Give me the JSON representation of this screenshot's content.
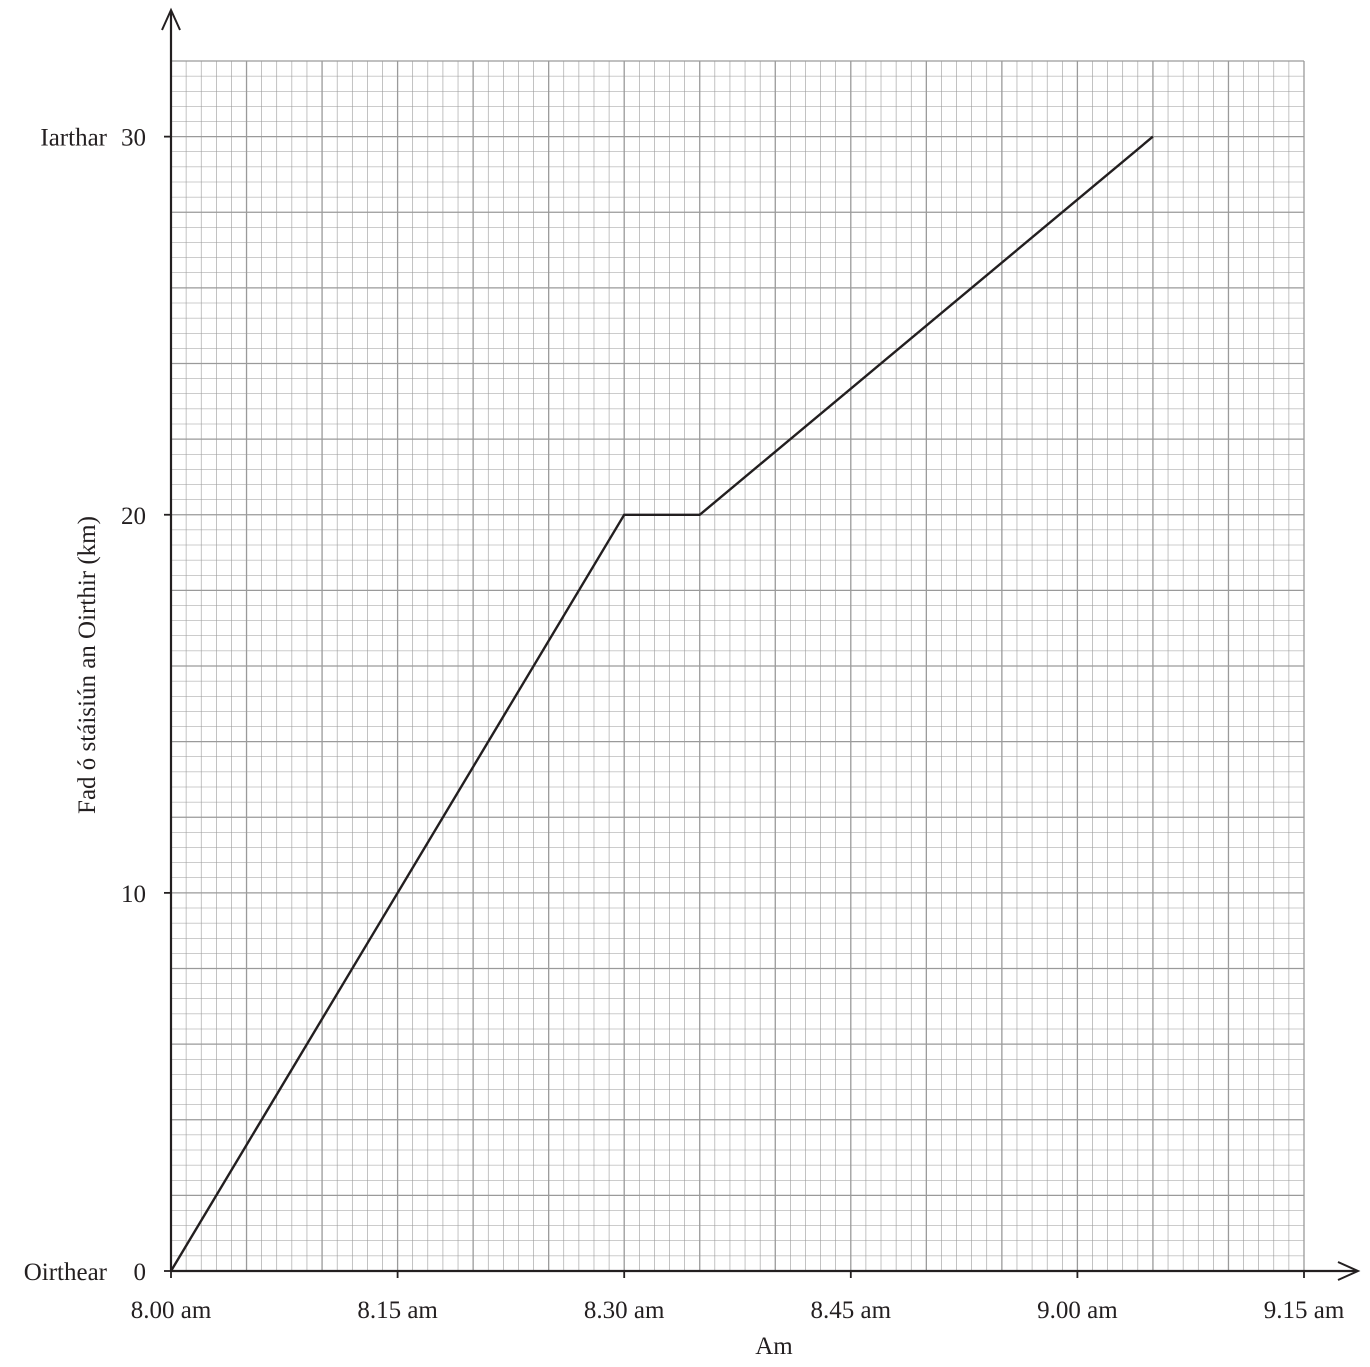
{
  "chart_data": {
    "type": "line",
    "title": "",
    "xlabel": "Am",
    "ylabel": "Fad ó stáisiún an Oirthir (km)",
    "x_unit": "minutes after 8.00 am",
    "x_ticks": [
      {
        "value": 0,
        "label": "8.00 am"
      },
      {
        "value": 15,
        "label": "8.15 am"
      },
      {
        "value": 30,
        "label": "8.30 am"
      },
      {
        "value": 45,
        "label": "8.45 am"
      },
      {
        "value": 60,
        "label": "9.00 am"
      },
      {
        "value": 75,
        "label": "9.15 am"
      }
    ],
    "y_ticks": [
      {
        "value": 0,
        "label": "0"
      },
      {
        "value": 10,
        "label": "10"
      },
      {
        "value": 20,
        "label": "20"
      },
      {
        "value": 30,
        "label": "30"
      }
    ],
    "y_side_labels": [
      {
        "value": 0,
        "label": "Oirthear"
      },
      {
        "value": 30,
        "label": "Iarthar"
      }
    ],
    "xlim": [
      0,
      75
    ],
    "ylim": [
      0,
      32
    ],
    "grid": true,
    "series": [
      {
        "points": [
          {
            "x": 0,
            "y": 0
          },
          {
            "x": 30,
            "y": 20
          },
          {
            "x": 35,
            "y": 20
          },
          {
            "x": 65,
            "y": 30
          }
        ]
      }
    ],
    "colors": {
      "line": "#231f20",
      "grid": "#9a9a9a",
      "axis": "#231f20"
    }
  }
}
